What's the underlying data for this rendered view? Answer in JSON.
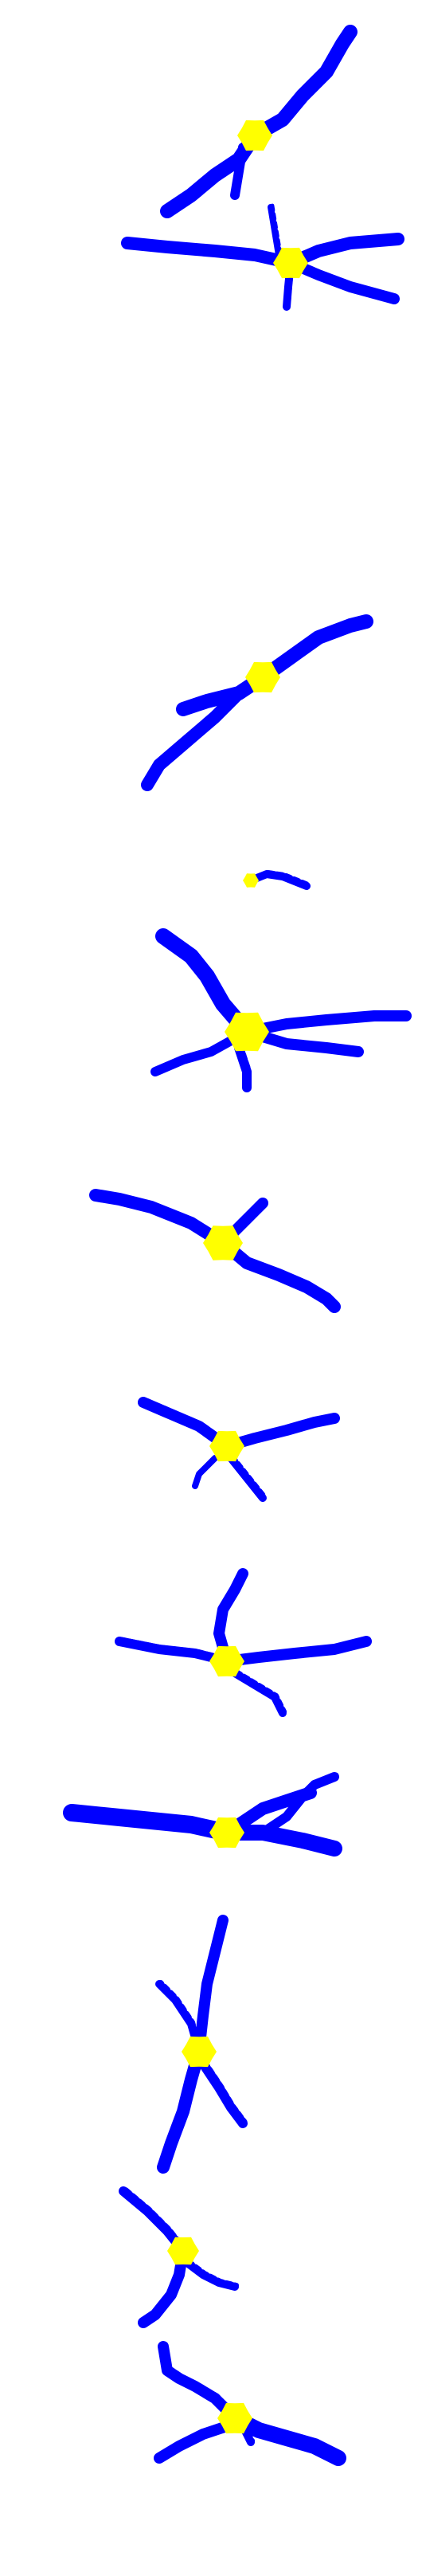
{
  "colors": {
    "background": "#ffffff",
    "arm": "#0000ff",
    "core": "#ffff00"
  },
  "specimens": [
    {
      "id": "s1"
    },
    {
      "id": "s2"
    },
    {
      "id": "s3"
    },
    {
      "id": "s4"
    },
    {
      "id": "s5"
    },
    {
      "id": "s6"
    },
    {
      "id": "s7"
    },
    {
      "id": "s8"
    },
    {
      "id": "s9"
    },
    {
      "id": "s10"
    },
    {
      "id": "s11"
    },
    {
      "id": "s12"
    },
    {
      "id": "s13"
    }
  ]
}
